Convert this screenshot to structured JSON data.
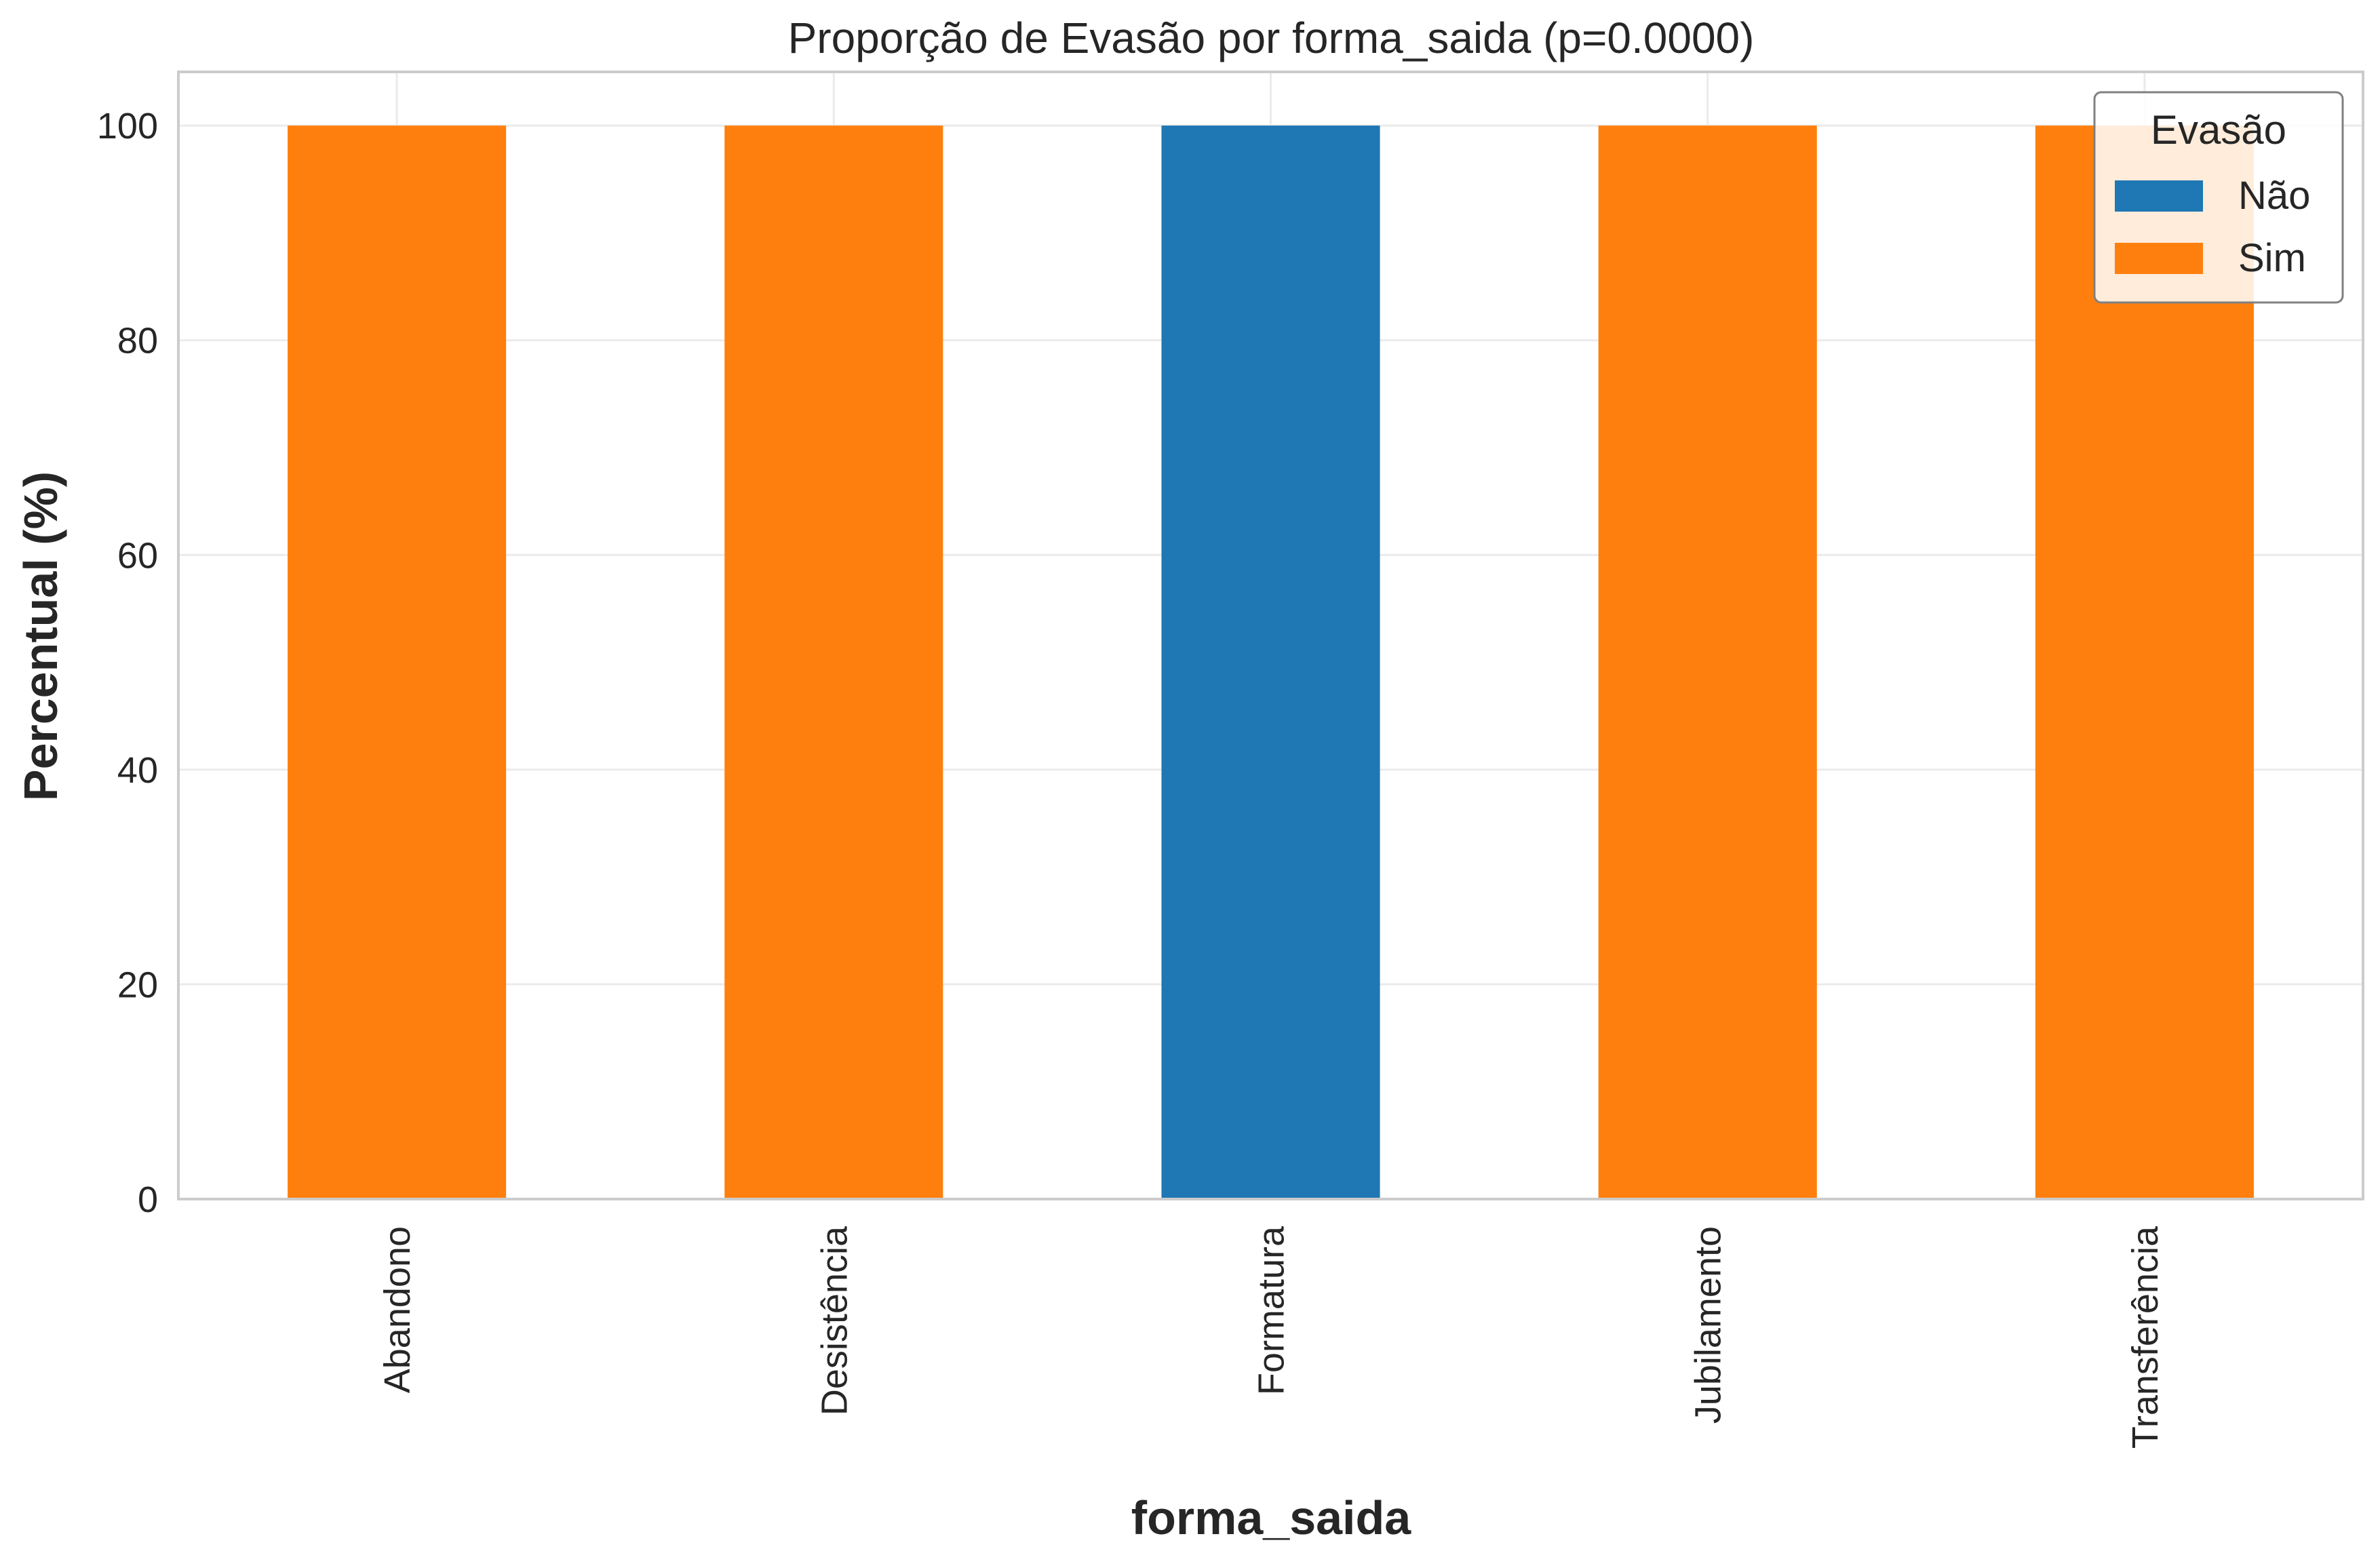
{
  "chart_data": {
    "type": "bar",
    "stacked": true,
    "title": "Proporção de Evasão por forma_saida (p=0.0000)",
    "xlabel": "forma_saida",
    "ylabel": "Percentual (%)",
    "categories": [
      "Abandono",
      "Desistência",
      "Formatura",
      "Jubilamento",
      "Transferência"
    ],
    "series": [
      {
        "name": "Não",
        "color": "#1f77b4",
        "values": [
          0,
          0,
          100,
          0,
          0
        ]
      },
      {
        "name": "Sim",
        "color": "#ff7f0e",
        "values": [
          100,
          100,
          0,
          100,
          100
        ]
      }
    ],
    "ylim": [
      0,
      105
    ],
    "yticks": [
      0,
      20,
      40,
      60,
      80,
      100
    ],
    "grid": true,
    "legend": {
      "title": "Evasão",
      "position": "top-right"
    }
  }
}
